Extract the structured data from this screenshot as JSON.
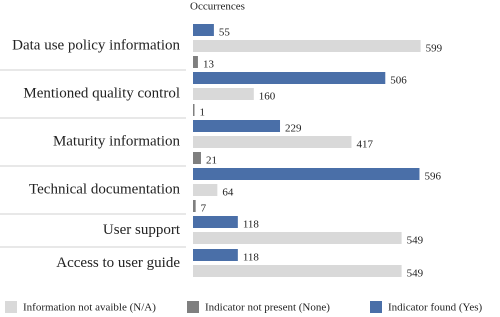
{
  "chart_data": {
    "type": "bar",
    "orientation": "horizontal",
    "title": "Occurrences",
    "categories": [
      "Data use policy information",
      "Mentioned quality control",
      "Maturity information",
      "Technical documentation",
      "User support",
      "Access to user guide"
    ],
    "series": [
      {
        "name": "Information not avaible (N/A)",
        "color": "#d9d9d9",
        "values": [
          599,
          160,
          417,
          64,
          549,
          549
        ]
      },
      {
        "name": "Indicator not present (None)",
        "color": "#7f7f7f",
        "values": [
          13,
          1,
          21,
          7,
          null,
          null
        ]
      },
      {
        "name": "Indicator found (Yes)",
        "color": "#4a6fa8",
        "values": [
          55,
          506,
          229,
          596,
          118,
          118
        ]
      }
    ],
    "xlim": [
      0,
      600
    ]
  }
}
